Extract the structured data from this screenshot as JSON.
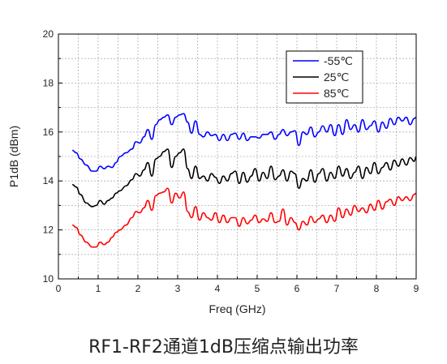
{
  "chart_data": {
    "type": "line",
    "xlabel": "Freq (GHz)",
    "ylabel": "P1dB (dBm)",
    "xlim": [
      0,
      9
    ],
    "ylim": [
      10,
      20
    ],
    "xticks": [
      0,
      1,
      2,
      3,
      4,
      5,
      6,
      7,
      8,
      9
    ],
    "yticks": [
      10,
      12,
      14,
      16,
      18,
      20
    ],
    "grid": true,
    "legend_position": "top-right",
    "series": [
      {
        "name": "-55℃",
        "color": "#0000ff",
        "x": [
          0.35,
          0.45,
          0.55,
          0.7,
          0.85,
          0.95,
          1.05,
          1.15,
          1.25,
          1.35,
          1.45,
          1.55,
          1.7,
          1.85,
          1.95,
          2.05,
          2.15,
          2.25,
          2.35,
          2.45,
          2.55,
          2.65,
          2.75,
          2.85,
          2.95,
          3.05,
          3.15,
          3.25,
          3.35,
          3.45,
          3.55,
          3.65,
          3.75,
          3.85,
          3.95,
          4.05,
          4.15,
          4.25,
          4.35,
          4.45,
          4.55,
          4.65,
          4.75,
          4.85,
          4.95,
          5.05,
          5.15,
          5.25,
          5.35,
          5.45,
          5.55,
          5.65,
          5.75,
          5.85,
          5.95,
          6.05,
          6.15,
          6.25,
          6.35,
          6.45,
          6.55,
          6.65,
          6.75,
          6.85,
          6.95,
          7.05,
          7.15,
          7.25,
          7.35,
          7.45,
          7.55,
          7.65,
          7.75,
          7.85,
          7.95,
          8.05,
          8.15,
          8.25,
          8.35,
          8.45,
          8.55,
          8.65,
          8.75,
          8.85,
          8.95,
          9.0
        ],
        "y": [
          15.25,
          15.15,
          14.9,
          14.65,
          14.4,
          14.4,
          14.6,
          14.5,
          14.6,
          14.55,
          14.75,
          15.0,
          15.15,
          15.3,
          15.6,
          15.55,
          15.8,
          16.1,
          15.7,
          16.3,
          16.5,
          16.6,
          16.7,
          16.3,
          16.6,
          16.7,
          16.75,
          16.4,
          15.95,
          16.45,
          15.9,
          15.8,
          16.0,
          15.85,
          15.9,
          15.65,
          15.9,
          15.65,
          15.9,
          15.95,
          15.7,
          15.95,
          15.65,
          15.8,
          15.8,
          15.75,
          15.9,
          15.9,
          16.0,
          15.7,
          15.9,
          16.1,
          15.85,
          16.0,
          16.05,
          15.45,
          16.0,
          15.9,
          16.2,
          15.8,
          16.0,
          16.25,
          16.0,
          16.3,
          15.85,
          16.3,
          15.9,
          16.5,
          16.1,
          16.3,
          16.0,
          16.5,
          16.1,
          16.25,
          16.45,
          16.0,
          16.4,
          16.15,
          16.55,
          16.3,
          16.6,
          16.45,
          16.6,
          16.3,
          16.55,
          16.6
        ]
      },
      {
        "name": "25℃",
        "color": "#000000",
        "x": [
          0.35,
          0.45,
          0.55,
          0.7,
          0.85,
          0.95,
          1.05,
          1.15,
          1.25,
          1.35,
          1.45,
          1.55,
          1.7,
          1.85,
          1.95,
          2.05,
          2.15,
          2.25,
          2.35,
          2.45,
          2.55,
          2.65,
          2.75,
          2.85,
          2.95,
          3.05,
          3.15,
          3.25,
          3.35,
          3.45,
          3.55,
          3.65,
          3.75,
          3.85,
          3.95,
          4.05,
          4.15,
          4.25,
          4.35,
          4.45,
          4.55,
          4.65,
          4.75,
          4.85,
          4.95,
          5.05,
          5.15,
          5.25,
          5.35,
          5.45,
          5.55,
          5.65,
          5.75,
          5.85,
          5.95,
          6.05,
          6.15,
          6.25,
          6.35,
          6.45,
          6.55,
          6.65,
          6.75,
          6.85,
          6.95,
          7.05,
          7.15,
          7.25,
          7.35,
          7.45,
          7.55,
          7.65,
          7.75,
          7.85,
          7.95,
          8.05,
          8.15,
          8.25,
          8.35,
          8.45,
          8.55,
          8.65,
          8.75,
          8.85,
          8.95,
          9.0
        ],
        "y": [
          13.85,
          13.75,
          13.45,
          13.1,
          12.95,
          13.0,
          13.2,
          13.05,
          13.2,
          13.3,
          13.5,
          13.6,
          13.8,
          14.05,
          14.3,
          14.2,
          14.45,
          14.75,
          14.2,
          14.9,
          15.0,
          15.2,
          15.3,
          14.55,
          15.0,
          15.15,
          15.3,
          14.5,
          14.1,
          14.6,
          14.1,
          14.2,
          14.0,
          14.3,
          14.15,
          13.9,
          14.2,
          14.0,
          14.3,
          14.4,
          13.9,
          14.35,
          13.95,
          14.2,
          14.5,
          14.0,
          14.35,
          14.1,
          14.6,
          14.05,
          14.2,
          14.45,
          14.0,
          14.4,
          14.3,
          13.7,
          14.1,
          14.0,
          14.45,
          13.95,
          14.3,
          14.5,
          14.0,
          14.35,
          14.1,
          14.6,
          14.2,
          14.5,
          14.1,
          14.35,
          14.6,
          14.1,
          14.55,
          14.3,
          14.75,
          14.3,
          14.55,
          14.75,
          14.45,
          14.85,
          14.6,
          14.9,
          14.65,
          14.95,
          14.8,
          15.0
        ]
      },
      {
        "name": "85℃",
        "color": "#ff0000",
        "x": [
          0.35,
          0.45,
          0.55,
          0.7,
          0.85,
          0.95,
          1.05,
          1.15,
          1.25,
          1.35,
          1.45,
          1.55,
          1.7,
          1.85,
          1.95,
          2.05,
          2.15,
          2.25,
          2.35,
          2.45,
          2.55,
          2.65,
          2.75,
          2.85,
          2.95,
          3.05,
          3.15,
          3.25,
          3.35,
          3.45,
          3.55,
          3.65,
          3.75,
          3.85,
          3.95,
          4.05,
          4.15,
          4.25,
          4.35,
          4.45,
          4.55,
          4.65,
          4.75,
          4.85,
          4.95,
          5.05,
          5.15,
          5.25,
          5.35,
          5.45,
          5.55,
          5.65,
          5.75,
          5.85,
          5.95,
          6.05,
          6.15,
          6.25,
          6.35,
          6.45,
          6.55,
          6.65,
          6.75,
          6.85,
          6.95,
          7.05,
          7.15,
          7.25,
          7.35,
          7.45,
          7.55,
          7.65,
          7.75,
          7.85,
          7.95,
          8.05,
          8.15,
          8.25,
          8.35,
          8.45,
          8.55,
          8.65,
          8.75,
          8.85,
          8.95,
          9.0
        ],
        "y": [
          12.2,
          12.1,
          11.8,
          11.5,
          11.3,
          11.3,
          11.5,
          11.4,
          11.5,
          11.7,
          11.9,
          12.0,
          12.2,
          12.5,
          12.75,
          12.7,
          12.9,
          13.2,
          12.8,
          13.4,
          13.5,
          13.55,
          13.7,
          13.1,
          13.5,
          13.3,
          13.55,
          12.75,
          12.5,
          12.95,
          12.4,
          12.7,
          12.5,
          12.4,
          12.7,
          12.3,
          12.6,
          12.3,
          12.5,
          12.5,
          12.15,
          12.5,
          12.25,
          12.4,
          12.6,
          12.3,
          12.45,
          12.35,
          12.7,
          12.3,
          12.35,
          12.85,
          12.2,
          12.5,
          12.3,
          12.0,
          12.35,
          12.2,
          12.55,
          12.3,
          12.45,
          12.6,
          12.3,
          12.6,
          12.35,
          12.9,
          12.5,
          12.85,
          12.6,
          13.0,
          12.75,
          12.9,
          12.7,
          13.05,
          12.8,
          13.2,
          12.85,
          13.15,
          13.25,
          13.0,
          13.35,
          13.2,
          13.35,
          13.2,
          13.45,
          13.5
        ]
      }
    ]
  },
  "caption": "RF1-RF2通道1dB压缩点输出功率"
}
